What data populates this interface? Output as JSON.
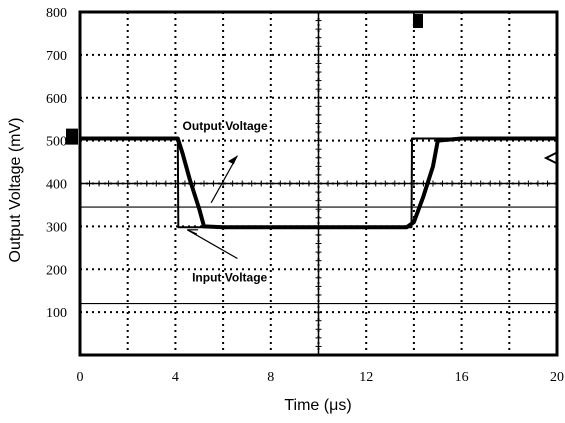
{
  "chart_data": {
    "type": "line",
    "title": "",
    "xlabel": "Time (μs)",
    "ylabel": "Output Voltage (mV)",
    "xlim": [
      0,
      20
    ],
    "ylim": [
      0,
      800
    ],
    "xticks": [
      0,
      4,
      8,
      12,
      16,
      20
    ],
    "yticks": [
      100,
      200,
      300,
      400,
      500,
      600,
      700,
      800
    ],
    "grid": true,
    "series": [
      {
        "name": "Output Voltage",
        "x": [
          0,
          4.1,
          4.3,
          4.6,
          5.0,
          5.2,
          6,
          10,
          13.7,
          14.0,
          14.4,
          14.8,
          15.0,
          16,
          20
        ],
        "y": [
          505,
          505,
          470,
          410,
          340,
          300,
          298,
          298,
          298,
          310,
          370,
          440,
          500,
          505,
          505
        ],
        "color": "#000000"
      },
      {
        "name": "Input Voltage",
        "x": [
          0,
          4.1,
          4.12,
          13.9,
          13.92,
          20
        ],
        "y": [
          505,
          505,
          298,
          298,
          505,
          505
        ],
        "color": "#000000"
      }
    ],
    "reference_lines": [
      {
        "y": 345
      },
      {
        "y": 120
      }
    ],
    "annotations": [
      {
        "text": "Output Voltage",
        "x": 4.3,
        "y": 525
      },
      {
        "text": "Input Voltage",
        "x": 4.7,
        "y": 172
      }
    ]
  }
}
